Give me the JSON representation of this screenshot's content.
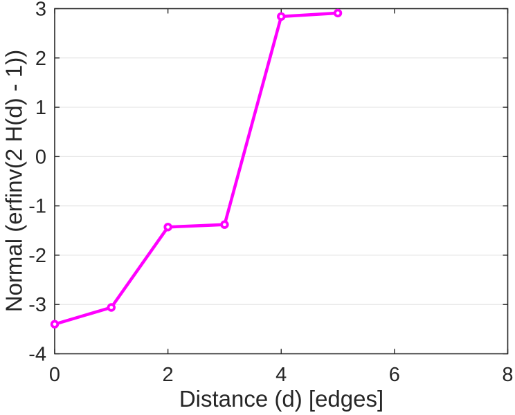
{
  "chart_data": {
    "type": "line",
    "xlabel": "Distance (d) [edges]",
    "ylabel": "Normal (erfinv(2 H(d) - 1))",
    "x": [
      0,
      1,
      2,
      3,
      4,
      5
    ],
    "y": [
      -3.4,
      -3.06,
      -1.43,
      -1.38,
      2.84,
      2.91
    ],
    "xlim": [
      0,
      8
    ],
    "ylim": [
      -4,
      3
    ],
    "xticks": [
      0,
      2,
      4,
      6,
      8
    ],
    "yticks": [
      -4,
      -3,
      -2,
      -1,
      0,
      1,
      2,
      3
    ],
    "grid": "horizontal",
    "line_color": "#ff00ff",
    "marker": "open-circle",
    "axis_color": "#262626",
    "grid_color": "#e6e6e6",
    "background_color": "#ffffff"
  }
}
